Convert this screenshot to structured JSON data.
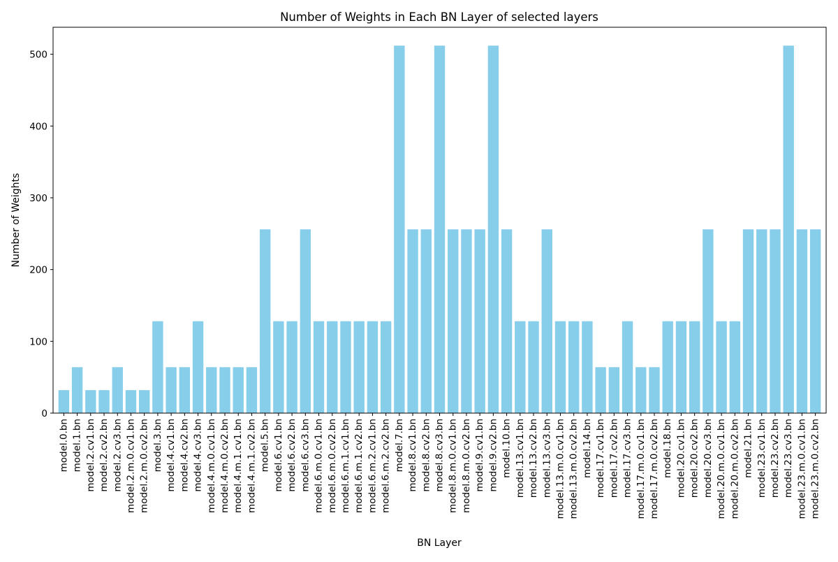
{
  "chart_data": {
    "type": "bar",
    "title": "Number of Weights in Each BN Layer of selected layers",
    "xlabel": "BN Layer",
    "ylabel": "Number of Weights",
    "ylim": [
      0,
      537.6
    ],
    "yticks": [
      0,
      100,
      200,
      300,
      400,
      500
    ],
    "ytick_labels": [
      "0",
      "100",
      "200",
      "300",
      "400",
      "500"
    ],
    "grid": false,
    "bar_color": "#87ceeb",
    "categories": [
      "model.0.bn",
      "model.1.bn",
      "model.2.cv1.bn",
      "model.2.cv2.bn",
      "model.2.cv3.bn",
      "model.2.m.0.cv1.bn",
      "model.2.m.0.cv2.bn",
      "model.3.bn",
      "model.4.cv1.bn",
      "model.4.cv2.bn",
      "model.4.cv3.bn",
      "model.4.m.0.cv1.bn",
      "model.4.m.0.cv2.bn",
      "model.4.m.1.cv1.bn",
      "model.4.m.1.cv2.bn",
      "model.5.bn",
      "model.6.cv1.bn",
      "model.6.cv2.bn",
      "model.6.cv3.bn",
      "model.6.m.0.cv1.bn",
      "model.6.m.0.cv2.bn",
      "model.6.m.1.cv1.bn",
      "model.6.m.1.cv2.bn",
      "model.6.m.2.cv1.bn",
      "model.6.m.2.cv2.bn",
      "model.7.bn",
      "model.8.cv1.bn",
      "model.8.cv2.bn",
      "model.8.cv3.bn",
      "model.8.m.0.cv1.bn",
      "model.8.m.0.cv2.bn",
      "model.9.cv1.bn",
      "model.9.cv2.bn",
      "model.10.bn",
      "model.13.cv1.bn",
      "model.13.cv2.bn",
      "model.13.cv3.bn",
      "model.13.m.0.cv1.bn",
      "model.13.m.0.cv2.bn",
      "model.14.bn",
      "model.17.cv1.bn",
      "model.17.cv2.bn",
      "model.17.cv3.bn",
      "model.17.m.0.cv1.bn",
      "model.17.m.0.cv2.bn",
      "model.18.bn",
      "model.20.cv1.bn",
      "model.20.cv2.bn",
      "model.20.cv3.bn",
      "model.20.m.0.cv1.bn",
      "model.20.m.0.cv2.bn",
      "model.21.bn",
      "model.23.cv1.bn",
      "model.23.cv2.bn",
      "model.23.cv3.bn",
      "model.23.m.0.cv1.bn",
      "model.23.m.0.cv2.bn"
    ],
    "values": [
      32,
      64,
      32,
      32,
      64,
      32,
      32,
      128,
      64,
      64,
      128,
      64,
      64,
      64,
      64,
      256,
      128,
      128,
      256,
      128,
      128,
      128,
      128,
      128,
      128,
      512,
      256,
      256,
      512,
      256,
      256,
      256,
      512,
      256,
      128,
      128,
      256,
      128,
      128,
      128,
      64,
      64,
      128,
      64,
      64,
      128,
      128,
      128,
      256,
      128,
      128,
      256,
      256,
      256,
      512,
      256,
      256
    ]
  }
}
